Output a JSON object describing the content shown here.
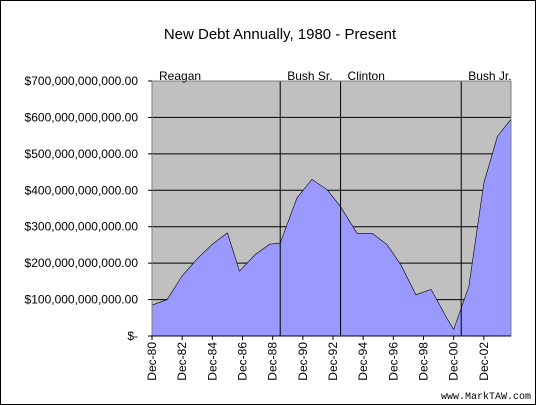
{
  "chart_data": {
    "type": "area",
    "title": "New Debt Annually, 1980 - Present",
    "xlabel": "",
    "ylabel": "",
    "x_tick_labels": [
      "Dec-80",
      "Dec-82",
      "Dec-84",
      "Dec-86",
      "Dec-88",
      "Dec-90",
      "Dec-92",
      "Dec-94",
      "Dec-96",
      "Dec-98",
      "Dec-00",
      "Dec-02"
    ],
    "y_tick_labels": [
      "$-",
      "$100,000,000,000.00",
      "$200,000,000,000.00",
      "$300,000,000,000.00",
      "$400,000,000,000.00",
      "$500,000,000,000.00",
      "$600,000,000,000.00",
      "$700,000,000,000.00"
    ],
    "ylim": [
      0,
      700000000000
    ],
    "xlim": [
      1980,
      2003.8
    ],
    "grid": true,
    "area_color": "#9999ff",
    "plot_background": "#c0c0c0",
    "series": [
      {
        "x": [
          1980,
          1981,
          1982,
          1983,
          1984,
          1985,
          1985.8,
          1986.8,
          1987.8,
          1988.5,
          1989.6,
          1990.6,
          1991.6,
          1992.5,
          1993.6,
          1994.6,
          1995.6,
          1996.5,
          1997.5,
          1998.5,
          1999.6,
          2000,
          2001,
          2002,
          2002.9,
          2003.8
        ],
        "y": [
          85000000000,
          100000000000,
          165000000000,
          212000000000,
          252000000000,
          283000000000,
          178000000000,
          222000000000,
          252000000000,
          255000000000,
          378000000000,
          430000000000,
          402000000000,
          355000000000,
          282000000000,
          282000000000,
          250000000000,
          195000000000,
          113000000000,
          128000000000,
          45000000000,
          18000000000,
          135000000000,
          420000000000,
          548000000000,
          595000000000
        ]
      }
    ],
    "annotations": [
      {
        "label": "Reagan",
        "x": 1980
      },
      {
        "label": "Bush Sr.",
        "x": 1988.5
      },
      {
        "label": "Clinton",
        "x": 1992.5
      },
      {
        "label": "Bush Jr.",
        "x": 2000.5
      }
    ],
    "credit": "www.MarkTAW.com"
  }
}
